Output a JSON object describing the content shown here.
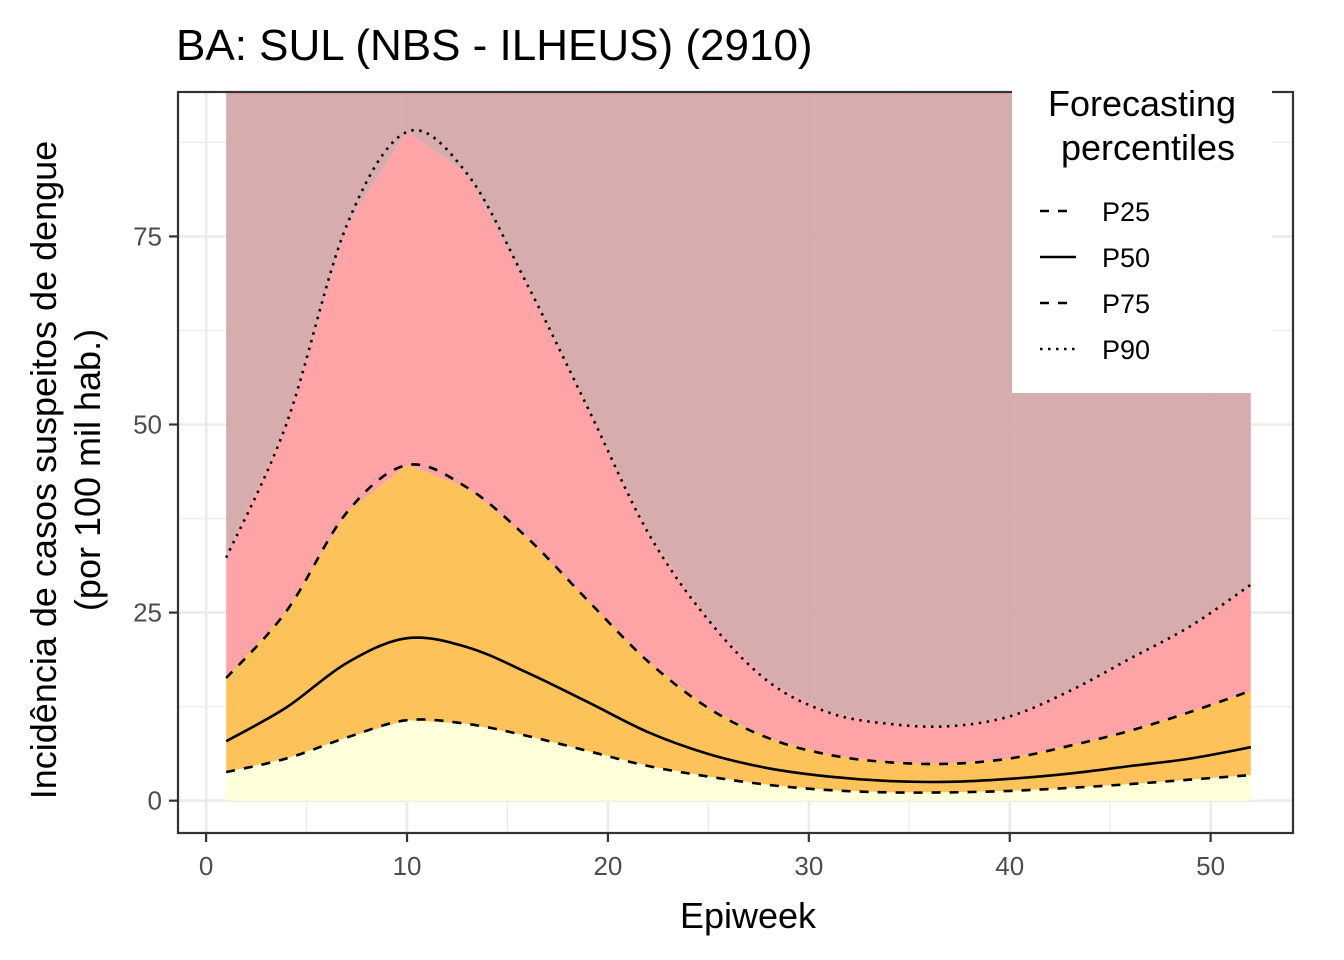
{
  "chart_data": {
    "type": "area",
    "title": "BA: SUL (NBS - ILHEUS) (2910)",
    "xlabel": "Epiweek",
    "ylabel_line1": "Incidência de casos suspeitos de dengue",
    "ylabel_line2": "(por 100 mil hab.)",
    "xlim": [
      -1.4,
      54.1
    ],
    "ylim": [
      -4.3,
      94.2
    ],
    "x_ticks": [
      0,
      10,
      20,
      30,
      40,
      50
    ],
    "x_tick_labels": [
      "0",
      "10",
      "20",
      "30",
      "40",
      "50"
    ],
    "y_ticks": [
      0,
      25,
      50,
      75
    ],
    "y_tick_labels": [
      "0",
      "25",
      "50",
      "75"
    ],
    "grid": true,
    "legend_position": "top-right",
    "legend": {
      "title_line1": "Forecasting",
      "title_line2": "percentiles",
      "entries": [
        {
          "label": "P25",
          "dash": "dashed"
        },
        {
          "label": "P50",
          "dash": "solid"
        },
        {
          "label": "P75",
          "dash": "dashed"
        },
        {
          "label": "P90",
          "dash": "dotted"
        }
      ]
    },
    "colors": {
      "band_0_25": "#ffffd9",
      "band_25_75": "#fec25a",
      "band_75_90": "#fea4a6",
      "band_90_top": "#d4a5a6",
      "line": "#000000",
      "grid": "#ebebeb",
      "panel_border": "#333333"
    },
    "x": [
      1,
      4,
      7,
      10,
      13,
      16,
      19,
      22,
      25,
      28,
      31,
      34,
      37,
      40,
      43,
      46,
      49,
      52
    ],
    "series": [
      {
        "name": "P25",
        "values": [
          3.8,
          5.6,
          8.4,
          10.7,
          10.2,
          8.6,
          6.6,
          4.6,
          3.2,
          2.1,
          1.4,
          1.1,
          1.1,
          1.3,
          1.7,
          2.2,
          2.8,
          3.4
        ]
      },
      {
        "name": "P50",
        "values": [
          7.9,
          12.4,
          18.3,
          21.6,
          20.4,
          17.0,
          13.1,
          9.1,
          6.2,
          4.3,
          3.2,
          2.6,
          2.5,
          2.9,
          3.6,
          4.6,
          5.6,
          7.1
        ]
      },
      {
        "name": "P75",
        "values": [
          16.3,
          25.2,
          38.3,
          44.6,
          41.6,
          34.9,
          26.6,
          18.5,
          12.3,
          8.3,
          6.1,
          5.1,
          4.9,
          5.6,
          7.3,
          9.3,
          11.8,
          14.6
        ]
      },
      {
        "name": "P90",
        "values": [
          32.3,
          50.1,
          76.5,
          88.9,
          83.3,
          68.5,
          52.2,
          35.6,
          24.0,
          15.8,
          11.7,
          10.2,
          9.9,
          11.2,
          14.6,
          18.9,
          23.2,
          28.7
        ]
      }
    ]
  }
}
